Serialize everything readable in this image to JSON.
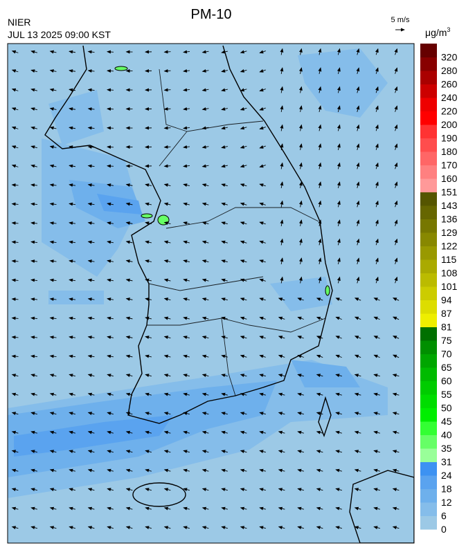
{
  "header": {
    "title": "PM-10",
    "agency": "NIER",
    "datetime": "JUL 13 2025 09:00 KST",
    "wind_scale": "5 m/s"
  },
  "colorbar": {
    "unit": "μg/m",
    "unit_superscript": "3",
    "ticks": [
      0,
      6,
      12,
      18,
      24,
      31,
      35,
      40,
      45,
      50,
      55,
      60,
      65,
      70,
      75,
      81,
      87,
      94,
      101,
      108,
      115,
      122,
      129,
      136,
      143,
      151,
      160,
      170,
      180,
      190,
      200,
      220,
      240,
      260,
      280,
      320
    ],
    "colors": [
      "#9cc9e6",
      "#85bdea",
      "#6eb0ec",
      "#5aa3ef",
      "#3d92f2",
      "#99ff99",
      "#66ff66",
      "#33ff33",
      "#00ee00",
      "#00dd00",
      "#00cc00",
      "#00bb00",
      "#00a600",
      "#008f00",
      "#007000",
      "#eeee00",
      "#dddd00",
      "#cccc00",
      "#bbbb00",
      "#aaaa00",
      "#999900",
      "#888800",
      "#777700",
      "#666600",
      "#555500",
      "#ff9999",
      "#ff8080",
      "#ff6666",
      "#ff4d4d",
      "#ff3333",
      "#ff0000",
      "#ee0000",
      "#cc0000",
      "#aa0000",
      "#880000",
      "#660000"
    ]
  }
}
